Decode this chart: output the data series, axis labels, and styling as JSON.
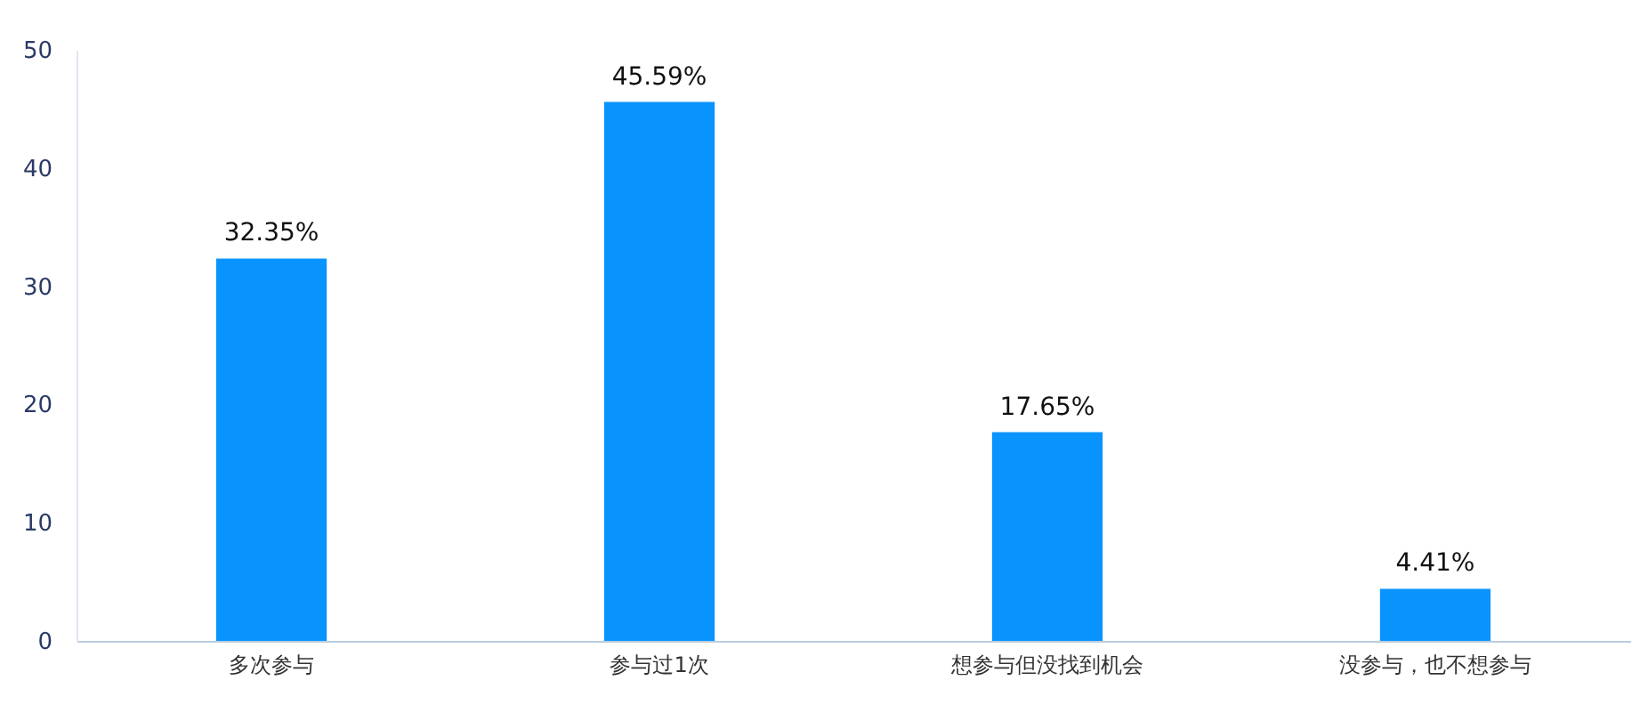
{
  "chart_data": {
    "type": "bar",
    "categories": [
      "多次参与",
      "参与过1次",
      "想参与但没找到机会",
      "没参与，也不想参与"
    ],
    "values": [
      32.35,
      45.59,
      17.65,
      4.41
    ],
    "value_labels": [
      "32.35%",
      "45.59%",
      "17.65%",
      "4.41%"
    ],
    "color": "#0994fd",
    "ylim": [
      0,
      50
    ],
    "yticks": [
      0,
      10,
      20,
      30,
      40,
      50
    ],
    "grid": false
  }
}
